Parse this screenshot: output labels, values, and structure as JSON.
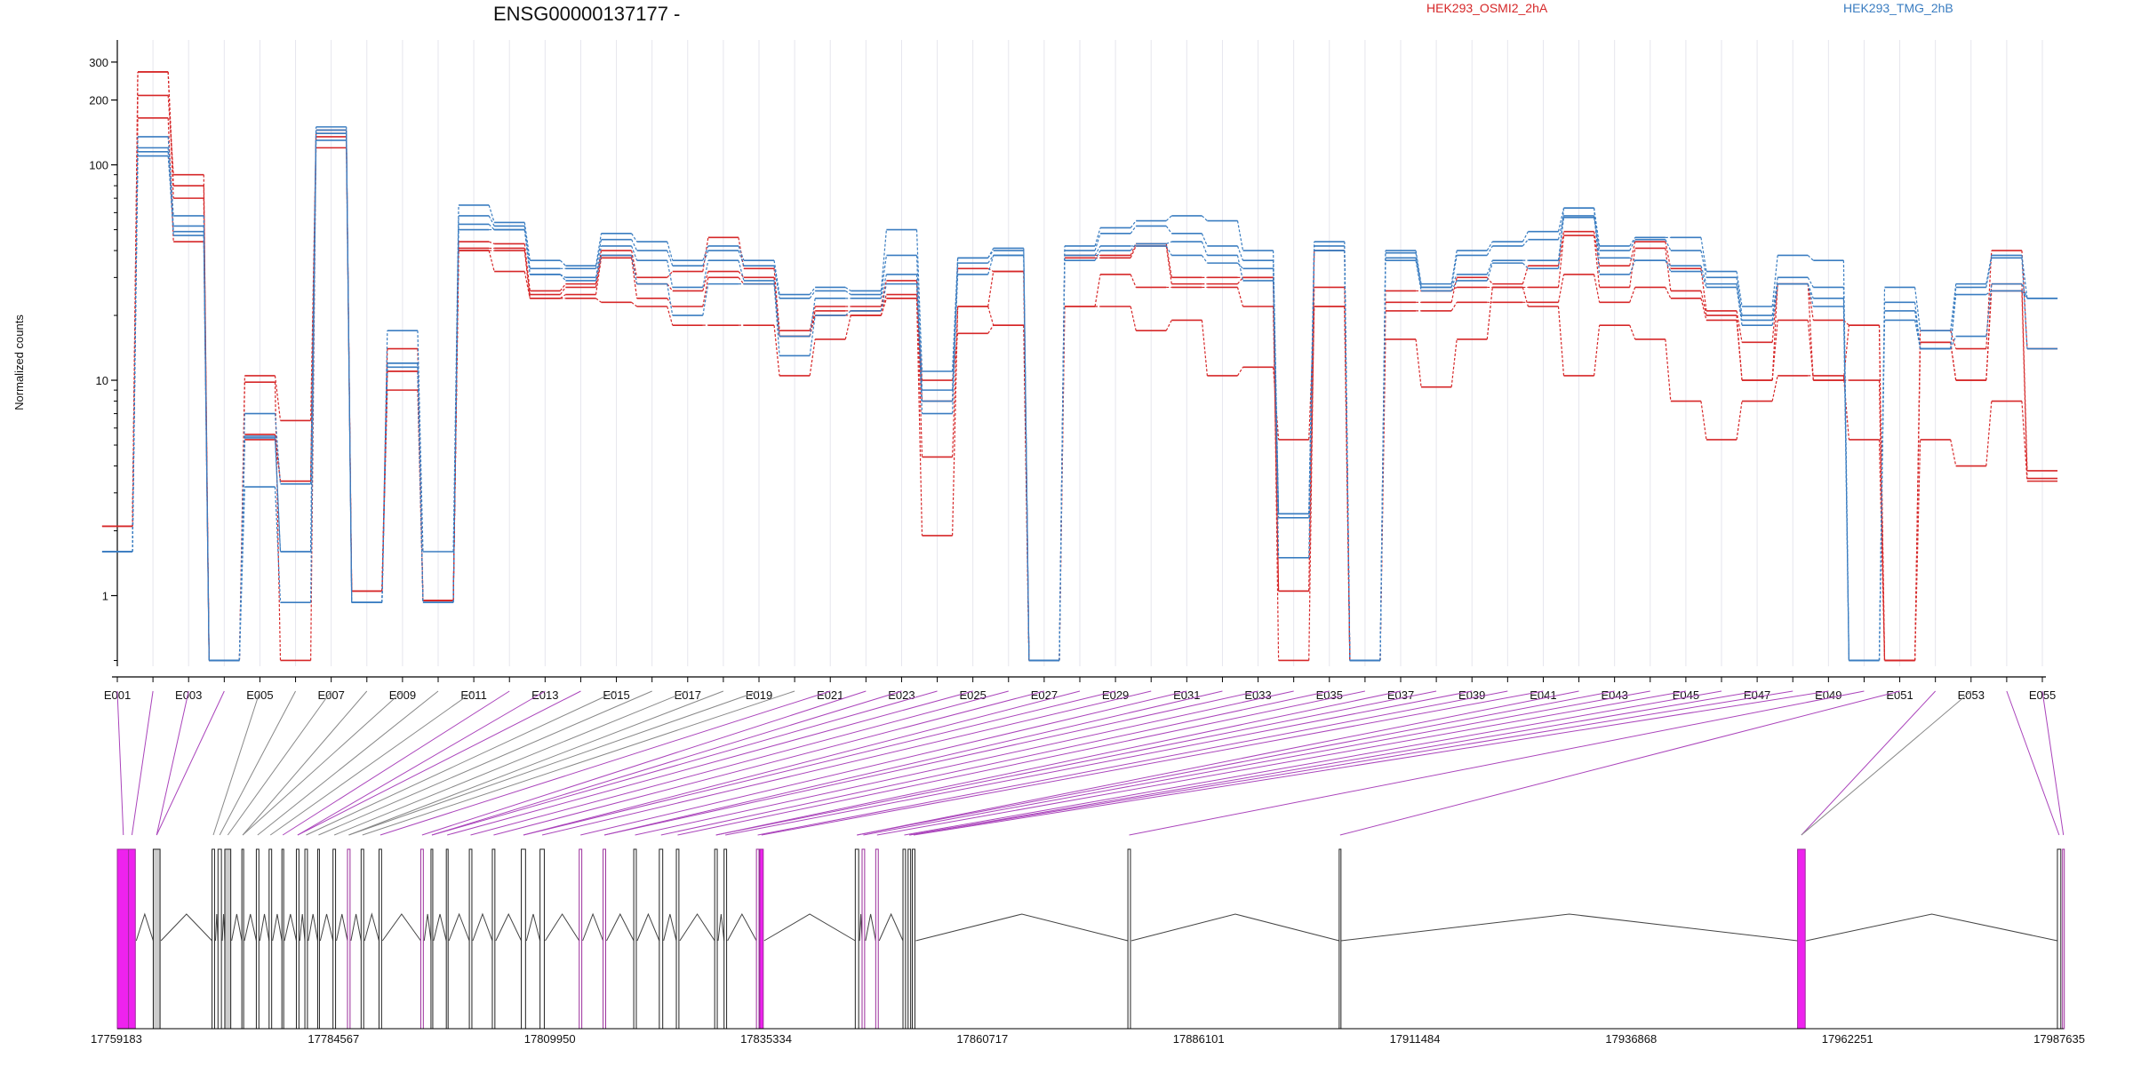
{
  "chart_data": {
    "type": "line",
    "title": "ENSG00000137177 -",
    "ylabel": "Normalized counts",
    "xlabel": "",
    "y_scale": "log",
    "ylim": [
      0.47,
      380
    ],
    "y_ticks": [
      1,
      10,
      100,
      200,
      300
    ],
    "grid": "vertical per exon",
    "legend_position": "top",
    "colors": {
      "HEK293_OSMI2_2hA": "#d62728",
      "HEK293_TMG_2hB": "#3a7dc1",
      "exon_highlight": "#ee22ee",
      "exon_plain": "#cccccc",
      "intron": "#444444"
    },
    "exons": [
      "E001",
      "E002",
      "E003",
      "E004",
      "E005",
      "E006",
      "E007",
      "E008",
      "E009",
      "E010",
      "E011",
      "E012",
      "E013",
      "E014",
      "E015",
      "E016",
      "E017",
      "E018",
      "E019",
      "E020",
      "E021",
      "E022",
      "E023",
      "E024",
      "E025",
      "E026",
      "E027",
      "E028",
      "E029",
      "E030",
      "E031",
      "E032",
      "E033",
      "E034",
      "E035",
      "E036",
      "E037",
      "E038",
      "E039",
      "E040",
      "E041",
      "E042",
      "E043",
      "E044",
      "E045",
      "E046",
      "E047",
      "E048",
      "E049",
      "E050",
      "E051",
      "E052",
      "E053",
      "E054",
      "E055"
    ],
    "x_tick_labels": [
      "E001",
      "E003",
      "E005",
      "E007",
      "E009",
      "E011",
      "E013",
      "E015",
      "E017",
      "E019",
      "E021",
      "E023",
      "E025",
      "E027",
      "E029",
      "E031",
      "E033",
      "E035",
      "E037",
      "E039",
      "E041",
      "E043",
      "E045",
      "E047",
      "E049",
      "E051",
      "E053",
      "E055"
    ],
    "series": [
      {
        "name": "HEK293_OSMI2_2hA",
        "group": "HEK293_OSMI2_2hA",
        "values": [
          2.1,
          270,
          70,
          0.5,
          10.5,
          6.5,
          135,
          1.05,
          14,
          0.95,
          44,
          43,
          26,
          28,
          40,
          30,
          32,
          46,
          33,
          17,
          22,
          22,
          29,
          4.4,
          22,
          32,
          0.5,
          38,
          38,
          43,
          30,
          30,
          30,
          0.5,
          27,
          0.5,
          23,
          23,
          30,
          28,
          34,
          49,
          34,
          44,
          33,
          21,
          15,
          28,
          19,
          18,
          0.5,
          17,
          14,
          40,
          14
        ]
      },
      {
        "name": "HEK293_OSMI2_2hA",
        "group": "HEK293_OSMI2_2hA",
        "values": [
          2.1,
          210,
          90,
          0.5,
          5.6,
          3.4,
          120,
          1.05,
          11,
          0.95,
          41,
          41,
          25,
          27,
          38,
          28,
          26,
          32,
          30,
          16,
          21,
          21,
          25,
          8,
          33,
          32,
          0.5,
          37,
          37,
          42,
          28,
          28,
          30,
          1.05,
          22,
          0.5,
          26,
          26,
          27,
          27,
          27,
          47,
          27,
          41,
          26,
          20,
          10,
          28,
          10,
          18,
          0.5,
          15,
          10,
          28,
          3.8
        ]
      },
      {
        "name": "HEK293_OSMI2_2hA",
        "group": "HEK293_OSMI2_2hA",
        "values": [
          2.1,
          165,
          44,
          0.5,
          5.3,
          3.4,
          145,
          1.05,
          11,
          0.95,
          40,
          32,
          24,
          25,
          37,
          24,
          22,
          30,
          28,
          16,
          20,
          20,
          24,
          1.9,
          22,
          18,
          0.5,
          22,
          31,
          27,
          27,
          27,
          22,
          1.05,
          40,
          0.5,
          21,
          21,
          23,
          23,
          23,
          31,
          23,
          27,
          24,
          19,
          10,
          19,
          10,
          10,
          0.5,
          15,
          10,
          26,
          3.5
        ]
      },
      {
        "name": "HEK293_OSMI2_2hA",
        "group": "HEK293_OSMI2_2hA",
        "values": [
          2.1,
          270,
          80,
          0.5,
          9.8,
          0.5,
          140,
          1.05,
          9,
          0.95,
          40,
          40,
          24,
          24,
          23,
          22,
          18,
          18,
          18,
          10.5,
          15.5,
          20,
          24,
          10,
          16.5,
          18,
          0.5,
          22,
          22,
          17,
          19,
          10.5,
          11.5,
          5.3,
          22,
          0.5,
          15.5,
          9.3,
          15.5,
          27,
          22,
          10.5,
          18,
          15.5,
          8,
          5.3,
          8,
          10.5,
          10.5,
          5.3,
          0.5,
          5.3,
          4,
          8,
          3.4
        ]
      },
      {
        "name": "HEK293_TMG_2hB",
        "group": "HEK293_TMG_2hB",
        "values": [
          1.6,
          135,
          58,
          0.5,
          7,
          3.3,
          150,
          0.93,
          17,
          1.6,
          65,
          54,
          36,
          34,
          48,
          44,
          36,
          42,
          36,
          25,
          27,
          26,
          50,
          11,
          37,
          41,
          0.5,
          42,
          51,
          55,
          58,
          55,
          40,
          2.4,
          44,
          0.5,
          40,
          28,
          40,
          44,
          49,
          63,
          42,
          46,
          46,
          32,
          22,
          38,
          36,
          0.5,
          27,
          17,
          28,
          38,
          24
        ]
      },
      {
        "name": "HEK293_TMG_2hB",
        "group": "HEK293_TMG_2hB",
        "values": [
          1.6,
          110,
          52,
          0.5,
          5.4,
          1.6,
          140,
          0.93,
          12,
          0.93,
          58,
          52,
          33,
          33,
          45,
          40,
          34,
          40,
          34,
          24,
          26,
          25,
          38,
          9,
          37,
          40,
          0.5,
          40,
          48,
          52,
          48,
          42,
          36,
          2.4,
          42,
          0.5,
          39,
          27,
          38,
          42,
          45,
          58,
          40,
          45,
          40,
          30,
          20,
          30,
          27,
          0.5,
          23,
          14,
          27,
          37,
          14
        ]
      },
      {
        "name": "HEK293_TMG_2hB",
        "group": "HEK293_TMG_2hB",
        "values": [
          1.6,
          115,
          49,
          0.5,
          3.2,
          0.93,
          130,
          0.93,
          11.5,
          0.93,
          53,
          50,
          31,
          30,
          42,
          36,
          27,
          36,
          29,
          16,
          24,
          24,
          31,
          7,
          35,
          38,
          0.5,
          38,
          42,
          42,
          38,
          35,
          33,
          1.5,
          40,
          0.5,
          37,
          27,
          31,
          36,
          36,
          57,
          37,
          36,
          34,
          28,
          19,
          28,
          24,
          0.5,
          21,
          14,
          25,
          26,
          24
        ]
      },
      {
        "name": "HEK293_TMG_2hB",
        "group": "HEK293_TMG_2hB",
        "values": [
          1.6,
          120,
          47,
          0.5,
          5.5,
          1.6,
          145,
          0.93,
          12,
          0.93,
          50,
          50,
          31,
          29,
          38,
          28,
          20,
          28,
          28,
          13,
          20,
          21,
          28,
          8,
          31,
          38,
          0.5,
          36,
          40,
          43,
          44,
          38,
          29,
          2.3,
          40,
          0.5,
          36,
          26,
          29,
          35,
          33,
          63,
          31,
          36,
          32,
          27,
          18,
          28,
          22,
          0.5,
          19,
          14,
          16,
          28,
          24
        ]
      }
    ],
    "genome_axis_ticks": [
      "17759183",
      "17784567",
      "17809950",
      "17835334",
      "17860717",
      "17886101",
      "17911484",
      "17936868",
      "17962251",
      "17987635"
    ],
    "genome_range": [
      17759183,
      17987635
    ],
    "gene_exon_starts": [
      17759183,
      17760500,
      17763400,
      17770300,
      17771000,
      17771800,
      17773800,
      17775500,
      17777000,
      17778500,
      17780200,
      17781200,
      17782700,
      17784500,
      17786200,
      17787800,
      17789900,
      17794800,
      17796000,
      17797800,
      17800500,
      17803200,
      17806600,
      17808800,
      17813400,
      17816200,
      17819800,
      17822800,
      17824800,
      17829300,
      17830400,
      17834200,
      17834600,
      17845800,
      17846600,
      17848200,
      17851400,
      17852000,
      17852500,
      17877800,
      17902600,
      17956400,
      17986900,
      17987500
    ],
    "gene_exon_ends": [
      17760600,
      17761300,
      17764200,
      17770600,
      17771400,
      17772500,
      17774000,
      17775800,
      17777300,
      17778700,
      17780500,
      17781500,
      17782900,
      17784800,
      17786500,
      17788100,
      17790200,
      17795100,
      17796200,
      17798000,
      17800800,
      17803500,
      17807100,
      17809300,
      17813700,
      17816500,
      17820100,
      17823200,
      17825100,
      17829600,
      17830700,
      17834500,
      17835000,
      17846200,
      17846900,
      17848500,
      17851700,
      17852300,
      17852800,
      17878100,
      17902700,
      17957300,
      17987300,
      17987635
    ],
    "highlighted_exons": [
      "E001",
      "E002",
      "E003",
      "E004",
      "E012",
      "E013",
      "E014",
      "E021",
      "E022",
      "E023",
      "E024",
      "E025",
      "E026",
      "E027",
      "E028",
      "E029",
      "E030",
      "E031",
      "E032",
      "E033",
      "E034",
      "E035",
      "E036",
      "E037",
      "E038",
      "E039",
      "E040",
      "E041",
      "E042",
      "E043",
      "E044",
      "E045",
      "E046",
      "E047",
      "E048",
      "E049",
      "E050",
      "E051",
      "E052",
      "E054",
      "E055"
    ]
  }
}
